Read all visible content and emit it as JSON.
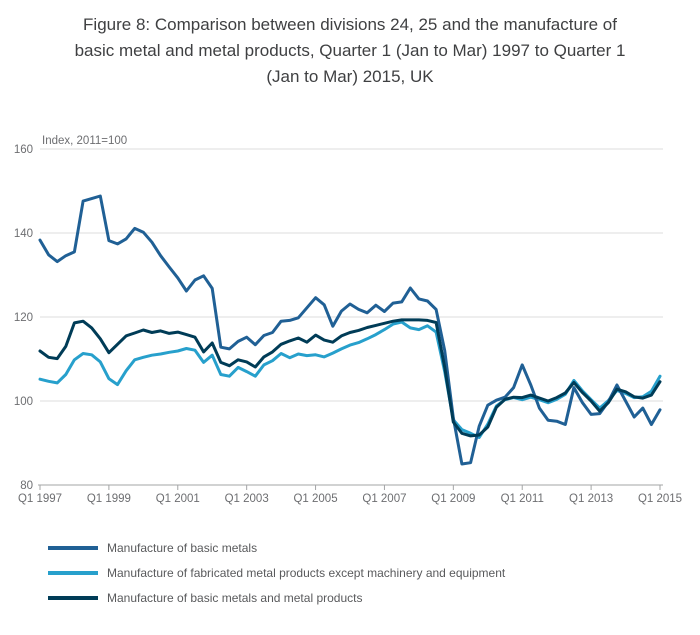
{
  "title": "Figure 8: Comparison between divisions 24, 25 and the manufacture of basic metal and metal products, Quarter 1 (Jan to Mar) 1997 to Quarter 1 (Jan to Mar) 2015, UK",
  "title_lines": [
    "Figure 8: Comparison between divisions 24, 25 and the manufacture of",
    "basic metal and metal products, Quarter 1 (Jan to Mar) 1997 to Quarter 1",
    "(Jan to Mar) 2015, UK"
  ],
  "chart_data": {
    "type": "line",
    "unit_label": "Index, 2011=100",
    "x_frequency": "quarterly",
    "x_start": "Q1 1997",
    "x_end": "Q1 2015",
    "x_tick_labels": [
      "Q1 1997",
      "Q1 1999",
      "Q1 2001",
      "Q1 2003",
      "Q1 2005",
      "Q1 2007",
      "Q1 2009",
      "Q1 2011",
      "Q1 2013",
      "Q1 2015"
    ],
    "x_tick_quarter_indices": [
      0,
      8,
      16,
      24,
      32,
      40,
      48,
      56,
      64,
      72
    ],
    "y_ticks": [
      160,
      140,
      120,
      100,
      80
    ],
    "ylim": [
      80,
      160
    ],
    "grid": "horizontal",
    "legend_position": "bottom-left",
    "series": [
      {
        "name": "Manufacture of basic metals",
        "color": "#206095",
        "values": [
          138.3,
          134.8,
          133.2,
          134.6,
          135.5,
          147.6,
          148.2,
          148.8,
          138.2,
          137.4,
          138.6,
          141.1,
          140.2,
          137.8,
          134.6,
          131.9,
          129.3,
          126.2,
          128.8,
          129.8,
          126.8,
          112.8,
          112.4,
          114.2,
          115.2,
          113.4,
          115.6,
          116.3,
          119.0,
          119.2,
          119.8,
          122.2,
          124.6,
          122.9,
          117.8,
          121.4,
          123.1,
          121.8,
          121.0,
          122.8,
          121.3,
          123.3,
          123.6,
          126.9,
          124.3,
          123.8,
          121.8,
          112.0,
          96.0,
          85.0,
          85.3,
          94.0,
          99.0,
          100.2,
          100.9,
          103.2,
          108.6,
          103.8,
          98.3,
          95.4,
          95.2,
          94.4,
          103.2,
          99.6,
          96.8,
          97.0,
          99.8,
          103.8,
          100.0,
          96.2,
          98.3,
          94.4,
          97.9
        ]
      },
      {
        "name": "Manufacture of fabricated metal products except machinery and equipment",
        "color": "#27a0cc",
        "values": [
          105.2,
          104.7,
          104.3,
          106.3,
          109.8,
          111.3,
          111.0,
          109.3,
          105.3,
          103.9,
          107.2,
          109.8,
          110.4,
          110.9,
          111.2,
          111.6,
          111.9,
          112.5,
          112.1,
          109.2,
          110.9,
          106.3,
          105.9,
          108.0,
          107.0,
          105.9,
          108.6,
          109.6,
          111.3,
          110.3,
          111.2,
          110.8,
          111.0,
          110.5,
          111.4,
          112.4,
          113.3,
          113.9,
          114.8,
          115.8,
          117.0,
          118.3,
          118.8,
          117.4,
          117.0,
          117.9,
          116.4,
          107.0,
          95.5,
          93.2,
          92.3,
          91.3,
          94.5,
          98.8,
          100.3,
          100.8,
          100.3,
          100.9,
          100.3,
          99.6,
          100.4,
          101.6,
          104.9,
          102.4,
          100.3,
          98.3,
          100.1,
          102.5,
          101.8,
          100.8,
          101.0,
          102.3,
          105.9
        ]
      },
      {
        "name": "Manufacture of basic metals and metal products",
        "color": "#003c57",
        "values": [
          111.9,
          110.4,
          110.1,
          113.0,
          118.6,
          119.0,
          117.4,
          114.8,
          111.5,
          113.5,
          115.5,
          116.2,
          116.9,
          116.3,
          116.7,
          116.1,
          116.4,
          115.8,
          115.2,
          111.7,
          113.8,
          109.2,
          108.4,
          109.8,
          109.3,
          108.1,
          110.5,
          111.7,
          113.5,
          114.3,
          115.0,
          114.0,
          115.7,
          114.5,
          114.0,
          115.5,
          116.3,
          116.8,
          117.5,
          118.0,
          118.5,
          119.0,
          119.3,
          119.3,
          119.3,
          119.2,
          118.7,
          108.0,
          95.0,
          92.3,
          91.7,
          91.9,
          93.8,
          98.5,
          100.4,
          100.9,
          100.8,
          101.4,
          100.7,
          100.0,
          100.8,
          101.9,
          104.4,
          102.0,
          100.0,
          97.6,
          99.6,
          102.8,
          102.2,
          101.0,
          100.7,
          101.4,
          104.6
        ]
      }
    ],
    "colors": {
      "basic_metals": "#206095",
      "fabricated_metal_products": "#27a0cc",
      "basic_metals_and_metal_products": "#003c57",
      "gridline": "#dcdcdc",
      "axis_line": "#a3a4a6",
      "axis_text": "#6d6e71",
      "title_text": "#3f4042",
      "legend_text": "#595a5c"
    }
  }
}
